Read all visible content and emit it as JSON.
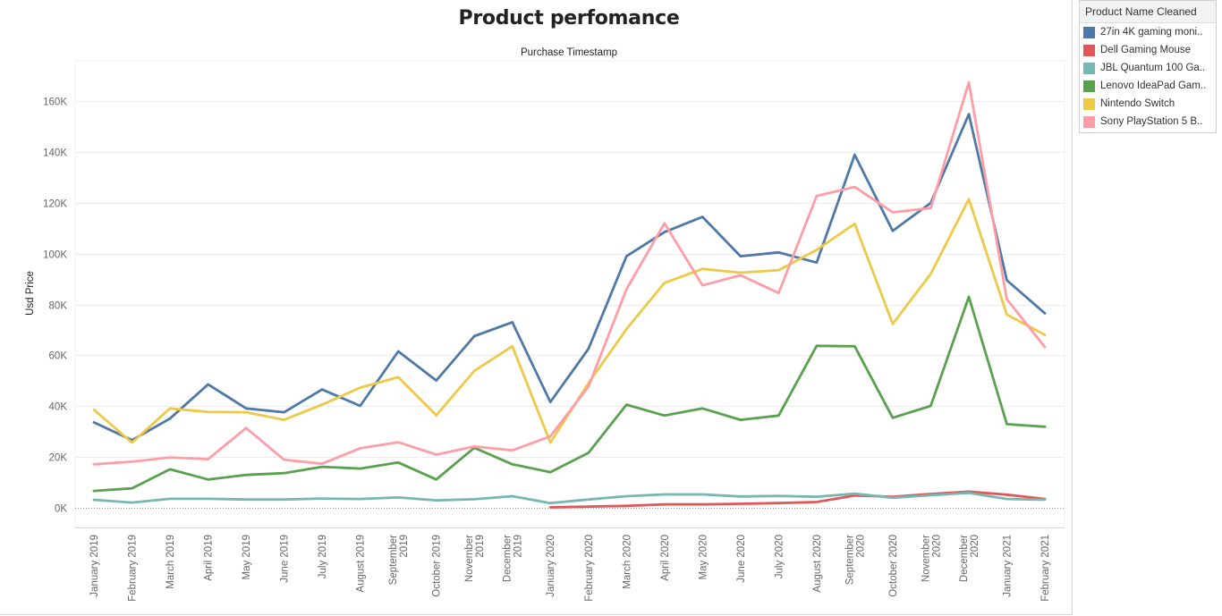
{
  "legend": {
    "title": "Product Name Cleaned",
    "items": [
      {
        "label": "27in 4K gaming moni..",
        "color": "#4e79a7"
      },
      {
        "label": "Dell Gaming Mouse",
        "color": "#e15759"
      },
      {
        "label": "JBL Quantum 100 Ga..",
        "color": "#76b7b2"
      },
      {
        "label": "Lenovo IdeaPad Gam..",
        "color": "#59a14f"
      },
      {
        "label": "Nintendo Switch",
        "color": "#edc948"
      },
      {
        "label": "Sony PlayStation 5 B..",
        "color": "#ff9da7"
      }
    ]
  },
  "chart_data": {
    "type": "line",
    "title": "Product perfomance",
    "xlabel": "Purchase Timestamp",
    "ylabel": "Usd Price",
    "ylim": [
      -5000,
      175000
    ],
    "yticks": [
      0,
      20000,
      40000,
      60000,
      80000,
      100000,
      120000,
      140000,
      160000
    ],
    "ytick_labels": [
      "0K",
      "20K",
      "40K",
      "60K",
      "80K",
      "100K",
      "120K",
      "140K",
      "160K"
    ],
    "grid": true,
    "legend_position": "top-right",
    "categories": [
      "January 2019",
      "February 2019",
      "March 2019",
      "April 2019",
      "May 2019",
      "June 2019",
      "July 2019",
      "August 2019",
      "September 2019",
      "October 2019",
      "November 2019",
      "December 2019",
      "January 2020",
      "February 2020",
      "March 2020",
      "April 2020",
      "May 2020",
      "June 2020",
      "July 2020",
      "August 2020",
      "September 2020",
      "October 2020",
      "November 2020",
      "December 2020",
      "January 2021",
      "February 2021"
    ],
    "category_lines": [
      [
        "January 2019"
      ],
      [
        "February 2019"
      ],
      [
        "March 2019"
      ],
      [
        "April 2019"
      ],
      [
        "May 2019"
      ],
      [
        "June 2019"
      ],
      [
        "July 2019"
      ],
      [
        "August 2019"
      ],
      [
        "September",
        "2019"
      ],
      [
        "October 2019"
      ],
      [
        "November",
        "2019"
      ],
      [
        "December",
        "2019"
      ],
      [
        "January 2020"
      ],
      [
        "February 2020"
      ],
      [
        "March 2020"
      ],
      [
        "April 2020"
      ],
      [
        "May 2020"
      ],
      [
        "June 2020"
      ],
      [
        "July 2020"
      ],
      [
        "August 2020"
      ],
      [
        "September",
        "2020"
      ],
      [
        "October 2020"
      ],
      [
        "November",
        "2020"
      ],
      [
        "December",
        "2020"
      ],
      [
        "January 2021"
      ],
      [
        "February 2021"
      ]
    ],
    "series": [
      {
        "name": "27in 4K gaming moni..",
        "color": "#4e79a7",
        "values": [
          33500,
          26500,
          35000,
          48500,
          39000,
          37500,
          46500,
          40000,
          61500,
          50000,
          67500,
          73000,
          41500,
          62500,
          99000,
          108500,
          114500,
          99000,
          100500,
          96500,
          139000,
          109000,
          120000,
          155000,
          89500,
          76500
        ]
      },
      {
        "name": "Dell Gaming Mouse",
        "color": "#e15759",
        "values": [
          null,
          null,
          null,
          null,
          null,
          null,
          null,
          null,
          null,
          null,
          null,
          null,
          0,
          300,
          600,
          1200,
          1200,
          1400,
          1700,
          2100,
          4700,
          4200,
          5300,
          6200,
          5000,
          3300
        ]
      },
      {
        "name": "JBL Quantum 100 Ga..",
        "color": "#76b7b2",
        "values": [
          3000,
          1900,
          3400,
          3400,
          3100,
          3100,
          3500,
          3300,
          3900,
          2800,
          3200,
          4400,
          1700,
          3100,
          4400,
          5100,
          5100,
          4300,
          4500,
          4200,
          5400,
          3800,
          4800,
          5700,
          3300,
          3000
        ]
      },
      {
        "name": "Lenovo IdeaPad Gam..",
        "color": "#59a14f",
        "values": [
          6500,
          7500,
          15000,
          11000,
          12800,
          13500,
          16000,
          15300,
          17700,
          11000,
          23500,
          17000,
          13900,
          21500,
          40500,
          36200,
          39000,
          34500,
          36200,
          63700,
          63500,
          35300,
          40000,
          83000,
          32800,
          31800
        ]
      },
      {
        "name": "Nintendo Switch",
        "color": "#edc948",
        "values": [
          38500,
          25500,
          39000,
          37600,
          37500,
          34500,
          40500,
          47200,
          51300,
          36300,
          53800,
          63500,
          25500,
          49000,
          70300,
          88500,
          94000,
          92500,
          93500,
          101500,
          111800,
          72300,
          92000,
          121500,
          76000,
          68000
        ]
      },
      {
        "name": "Sony PlayStation 5 B..",
        "color": "#ff9da7",
        "values": [
          17000,
          18000,
          19700,
          19000,
          31300,
          18800,
          17200,
          23300,
          25700,
          20800,
          24000,
          22500,
          28000,
          47600,
          86000,
          112000,
          87500,
          91500,
          84500,
          122800,
          126300,
          116300,
          118000,
          167500,
          82000,
          63200
        ]
      }
    ]
  }
}
